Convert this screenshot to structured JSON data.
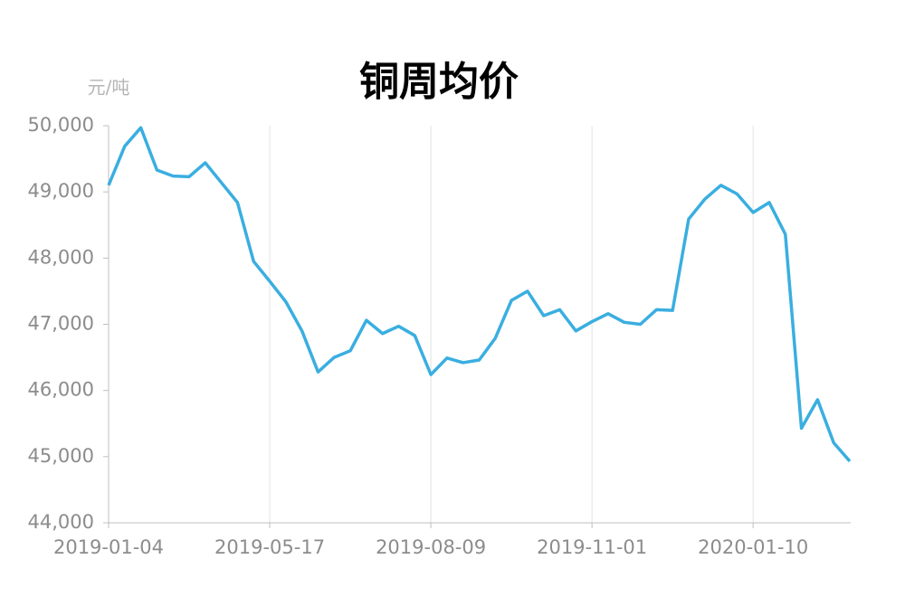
{
  "chart_data": {
    "type": "line",
    "title": "铜周均价",
    "y_label": "元/吨",
    "categories": [
      "2019-01-04",
      null,
      null,
      null,
      null,
      null,
      null,
      null,
      null,
      null,
      "2019-05-17",
      null,
      null,
      null,
      null,
      null,
      null,
      null,
      null,
      null,
      "2019-08-09",
      null,
      null,
      null,
      null,
      null,
      null,
      null,
      null,
      null,
      "2019-11-01",
      null,
      null,
      null,
      null,
      null,
      null,
      null,
      null,
      null,
      "2020-01-10",
      null,
      null,
      null,
      null,
      null,
      null
    ],
    "series": [
      {
        "name": "铜周均价",
        "color": "#3aaee0",
        "values": [
          49100,
          49690,
          49970,
          49330,
          49240,
          49230,
          49440,
          49140,
          48840,
          47950,
          47650,
          47340,
          46900,
          46280,
          46500,
          46600,
          47060,
          46860,
          46970,
          46830,
          46240,
          46490,
          46420,
          46460,
          46790,
          47360,
          47500,
          47130,
          47220,
          46900,
          47040,
          47160,
          47030,
          47000,
          47220,
          47210,
          48590,
          48890,
          49100,
          48970,
          48690,
          48840,
          48360,
          45430,
          45860,
          45210,
          44930
        ]
      }
    ],
    "ylim": [
      44000,
      50000
    ],
    "yticks": [
      {
        "value": 44000,
        "label": "44,000"
      },
      {
        "value": 45000,
        "label": "45,000"
      },
      {
        "value": 46000,
        "label": "46,000"
      },
      {
        "value": 47000,
        "label": "47,000"
      },
      {
        "value": 48000,
        "label": "48,000"
      },
      {
        "value": 49000,
        "label": "49,000"
      },
      {
        "value": 50000,
        "label": "50,000"
      }
    ],
    "grid": true
  }
}
